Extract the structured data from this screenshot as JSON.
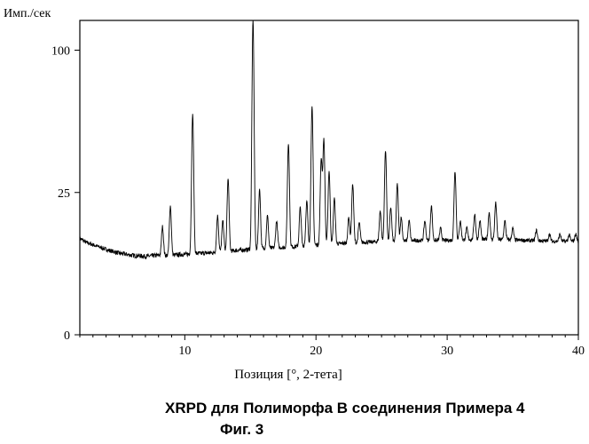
{
  "chart_data": {
    "type": "line",
    "title": "",
    "xlabel": "Позиция [°, 2-тета]",
    "ylabel": "Имп./сек",
    "xlim": [
      2,
      40
    ],
    "ylim": [
      0,
      122
    ],
    "x_ticks": [
      10,
      20,
      30,
      40
    ],
    "y_ticks": [
      0,
      25,
      100
    ],
    "y_tick_labels": [
      "0",
      "25",
      "100"
    ],
    "grid": false,
    "y_scale": "sqrt",
    "baseline": [
      [
        2,
        11.5
      ],
      [
        2.5,
        10.5
      ],
      [
        3,
        10
      ],
      [
        4,
        9
      ],
      [
        5,
        8.2
      ],
      [
        6,
        7.8
      ],
      [
        7,
        7.6
      ],
      [
        8,
        7.8
      ],
      [
        9,
        7.8
      ],
      [
        10,
        8
      ],
      [
        12,
        8.3
      ],
      [
        14,
        8.8
      ],
      [
        16,
        9.2
      ],
      [
        18,
        9.5
      ],
      [
        20,
        10
      ],
      [
        22,
        10.3
      ],
      [
        24,
        10.6
      ],
      [
        26,
        10.8
      ],
      [
        28,
        11
      ],
      [
        30,
        11
      ],
      [
        32,
        11.2
      ],
      [
        34,
        11.2
      ],
      [
        36,
        11
      ],
      [
        38,
        10.8
      ],
      [
        40,
        10.8
      ]
    ],
    "peaks": [
      [
        8.3,
        14.5
      ],
      [
        8.9,
        20.5
      ],
      [
        10.6,
        60
      ],
      [
        12.5,
        17.5
      ],
      [
        12.9,
        16
      ],
      [
        13.3,
        30
      ],
      [
        15.2,
        122
      ],
      [
        15.7,
        26
      ],
      [
        16.3,
        17.5
      ],
      [
        17,
        16
      ],
      [
        17.9,
        45
      ],
      [
        18.8,
        20
      ],
      [
        19.3,
        22
      ],
      [
        19.7,
        64
      ],
      [
        20.4,
        38
      ],
      [
        20.6,
        47
      ],
      [
        21,
        33
      ],
      [
        21.4,
        23
      ],
      [
        22.5,
        17
      ],
      [
        22.8,
        28
      ],
      [
        23.3,
        15.5
      ],
      [
        24.9,
        19
      ],
      [
        25.3,
        42
      ],
      [
        25.7,
        20
      ],
      [
        26.2,
        28
      ],
      [
        26.5,
        17
      ],
      [
        27.1,
        16
      ],
      [
        28.3,
        16
      ],
      [
        28.8,
        20.5
      ],
      [
        29.5,
        14
      ],
      [
        30.6,
        33
      ],
      [
        31,
        16
      ],
      [
        31.5,
        14
      ],
      [
        32.1,
        18
      ],
      [
        32.5,
        16
      ],
      [
        33.2,
        18.5
      ],
      [
        33.7,
        21.5
      ],
      [
        34.4,
        16
      ],
      [
        35,
        14
      ],
      [
        36.8,
        13.5
      ],
      [
        37.8,
        12.5
      ],
      [
        38.6,
        12.5
      ],
      [
        39.3,
        12.3
      ],
      [
        39.8,
        12.5
      ]
    ]
  },
  "caption": {
    "title": "XRPD для Полиморфа B соединения Примера 4",
    "figure": "Фиг. 3"
  }
}
